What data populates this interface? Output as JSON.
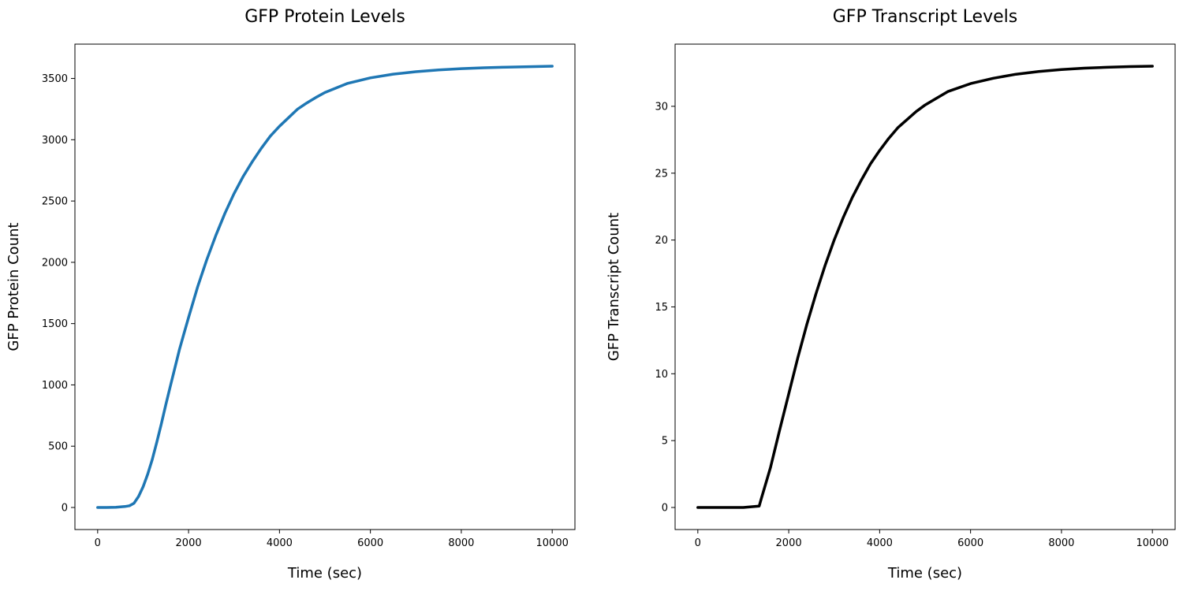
{
  "chart_data": [
    {
      "type": "line",
      "title": "GFP Protein Levels",
      "xlabel": "Time (sec)",
      "ylabel": "GFP Protein Count",
      "xlim": [
        -500,
        10500
      ],
      "ylim": [
        -180,
        3780
      ],
      "xticks": [
        0,
        2000,
        4000,
        6000,
        8000,
        10000
      ],
      "yticks": [
        0,
        500,
        1000,
        1500,
        2000,
        2500,
        3000,
        3500
      ],
      "grid": false,
      "series": [
        {
          "color": "#1f77b4",
          "x": [
            0,
            200,
            400,
            600,
            700,
            800,
            900,
            1000,
            1100,
            1200,
            1300,
            1400,
            1500,
            1600,
            1700,
            1800,
            1900,
            2000,
            2200,
            2400,
            2600,
            2800,
            3000,
            3200,
            3400,
            3600,
            3800,
            4000,
            4200,
            4400,
            4600,
            4800,
            5000,
            5500,
            6000,
            6500,
            7000,
            7500,
            8000,
            8500,
            9000,
            9500,
            10000
          ],
          "y": [
            0,
            0,
            2,
            8,
            14,
            35,
            90,
            170,
            270,
            390,
            530,
            680,
            840,
            990,
            1140,
            1290,
            1420,
            1550,
            1800,
            2020,
            2220,
            2400,
            2560,
            2700,
            2820,
            2930,
            3030,
            3110,
            3180,
            3250,
            3300,
            3345,
            3385,
            3460,
            3505,
            3535,
            3555,
            3570,
            3580,
            3587,
            3592,
            3596,
            3600
          ]
        }
      ]
    },
    {
      "type": "line",
      "title": "GFP Transcript Levels",
      "xlabel": "Time (sec)",
      "ylabel": "GFP Transcript Count",
      "xlim": [
        -500,
        10500
      ],
      "ylim": [
        -1.65,
        34.65
      ],
      "xticks": [
        0,
        2000,
        4000,
        6000,
        8000,
        10000
      ],
      "yticks": [
        0,
        5,
        10,
        15,
        20,
        25,
        30
      ],
      "grid": false,
      "series": [
        {
          "color": "#000000",
          "x": [
            0,
            500,
            1000,
            1350,
            1400,
            1600,
            1800,
            2000,
            2200,
            2400,
            2600,
            2800,
            3000,
            3200,
            3400,
            3600,
            3800,
            4000,
            4200,
            4400,
            4600,
            4800,
            5000,
            5500,
            6000,
            6500,
            7000,
            7500,
            8000,
            8500,
            9000,
            9500,
            10000
          ],
          "y": [
            0,
            0,
            0,
            0.1,
            0.7,
            3,
            5.8,
            8.5,
            11.2,
            13.7,
            16,
            18.1,
            20,
            21.7,
            23.2,
            24.5,
            25.7,
            26.7,
            27.6,
            28.4,
            29,
            29.6,
            30.1,
            31.1,
            31.7,
            32.1,
            32.4,
            32.6,
            32.75,
            32.85,
            32.92,
            32.97,
            33
          ]
        }
      ]
    }
  ]
}
